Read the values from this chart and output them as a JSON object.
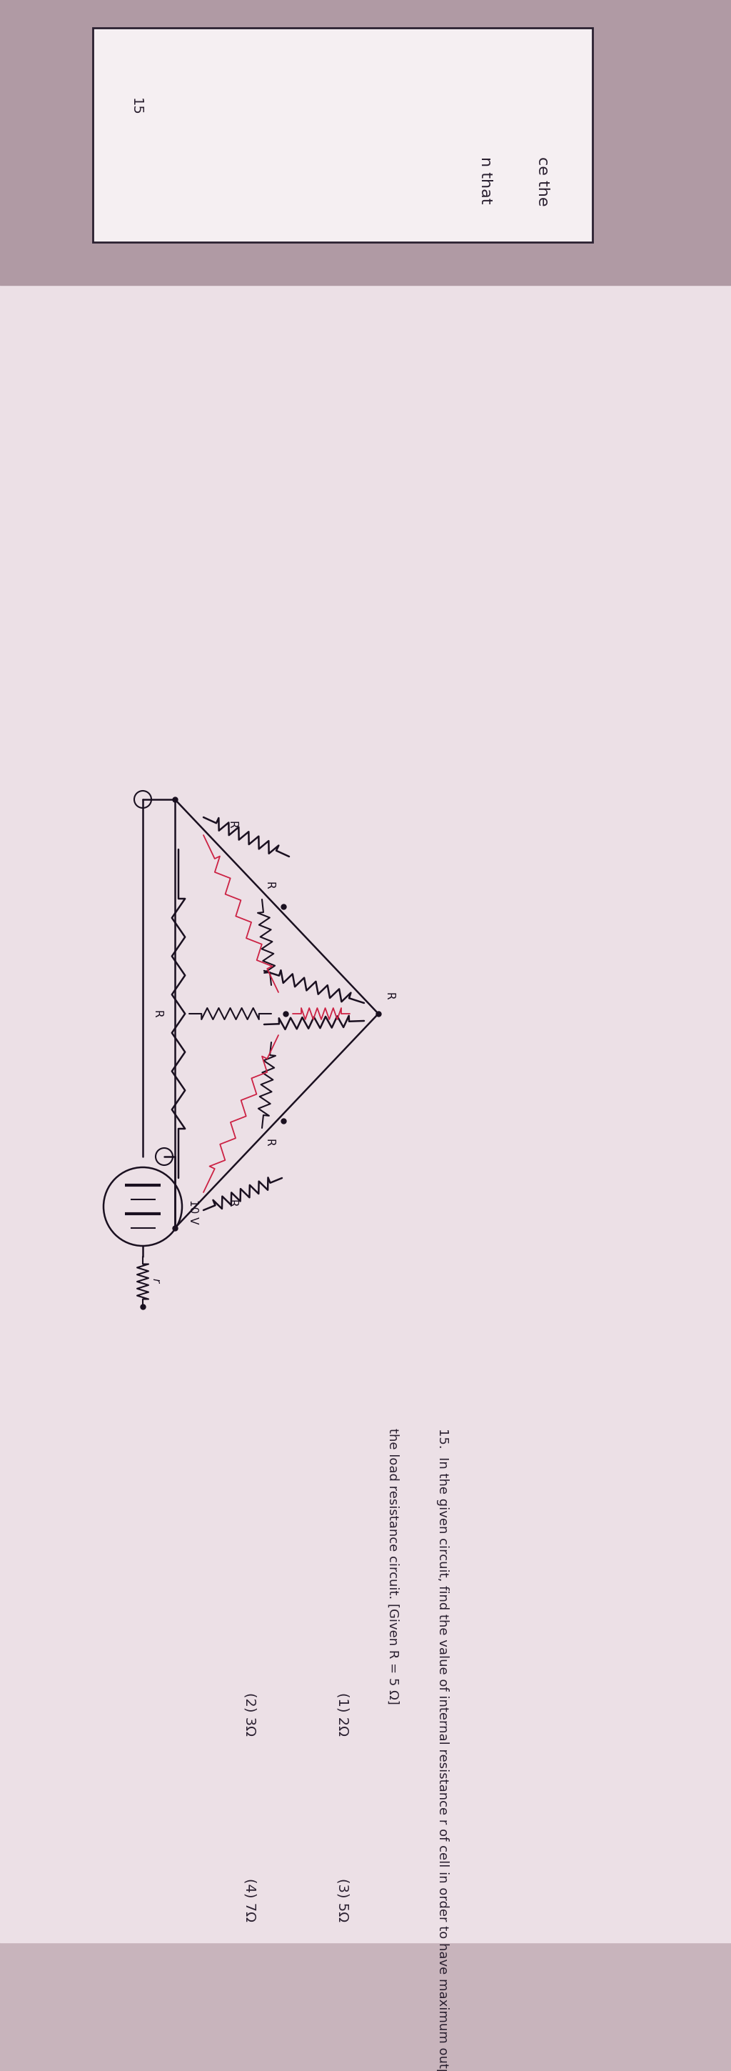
{
  "bg_color_top": "#b8a0a8",
  "bg_color_shadow": "#9a8090",
  "page_color": "#e8dce4",
  "page_color2": "#f0e8ec",
  "text_color": "#2a2030",
  "text_color2": "#3a3040",
  "prev_line1": "ce the",
  "prev_line2": "n that",
  "question_num": "15.",
  "question_line1": "In the given circuit, find the value of internal resistance r of cell in order to have maximum output power in",
  "question_line2": "the load resistance circuit. [Given R = 5 Ω]",
  "opt1": "(1) 2Ω",
  "opt2": "(2) 3Ω",
  "opt3": "(3) 5Ω",
  "opt4": "(4) 7Ω",
  "page_num": "15",
  "font_size": 13,
  "font_size_opts": 13,
  "resistor_color": "#1a1020",
  "resistor_color_red": "#cc2244"
}
